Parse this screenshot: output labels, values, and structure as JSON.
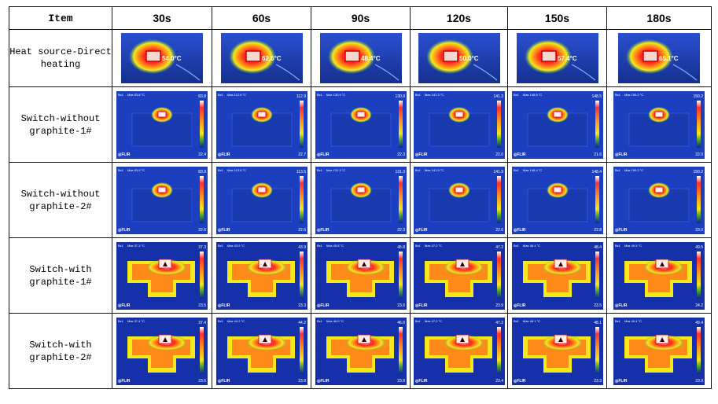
{
  "header": {
    "item_label": "Item",
    "times": [
      "30s",
      "60s",
      "90s",
      "120s",
      "150s",
      "180s"
    ]
  },
  "rows": [
    {
      "label": "Heat source-Direct\nheating",
      "kind": "heat",
      "temps": [
        "54.0°C",
        "62.6°C",
        "48.4°C",
        "50.0°C",
        "57.4°C",
        "65.1°C"
      ]
    },
    {
      "label": "Switch-without\ngraphite-1#",
      "kind": "ir-small",
      "max": [
        "83.8",
        "112.9",
        "130.9",
        "141.3",
        "148.5",
        "150.2"
      ],
      "min": [
        "22.4",
        "22.7",
        "22.3",
        "22.0",
        "21.6",
        "22.0"
      ]
    },
    {
      "label": "Switch-without\ngraphite-2#",
      "kind": "ir-small",
      "max": [
        "83.9",
        "113.5",
        "131.3",
        "141.9",
        "148.4",
        "150.2"
      ],
      "min": [
        "22.6",
        "22.6",
        "22.3",
        "22.6",
        "22.8",
        "23.0"
      ]
    },
    {
      "label": "Switch-with\ngraphite-1#",
      "kind": "ir-wide",
      "max": [
        "37.3",
        "43.9",
        "45.8",
        "47.2",
        "48.4",
        "49.5"
      ],
      "min": [
        "23.5",
        "23.3",
        "23.6",
        "23.9",
        "23.5",
        "24.2"
      ]
    },
    {
      "label": "Switch-with\ngraphite-2#",
      "kind": "ir-wide",
      "max": [
        "37.4",
        "44.2",
        "46.0",
        "47.2",
        "48.1",
        "49.4"
      ],
      "min": [
        "23.6",
        "23.8",
        "23.8",
        "23.4",
        "23.3",
        "23.9"
      ]
    }
  ],
  "image_text": {
    "bx_label": "Bx1",
    "max_prefix": "Max",
    "unit": "°C",
    "brand": "FLIR"
  },
  "colors": {
    "ir_background": "#1c3fbf",
    "ir_dark": "#0d1f7a",
    "hot_red": "#ff1e1e",
    "hot_white": "#fff4f0",
    "yellow": "#f5e81c",
    "orange": "#ff8a1a",
    "grid_line": "#111111"
  }
}
